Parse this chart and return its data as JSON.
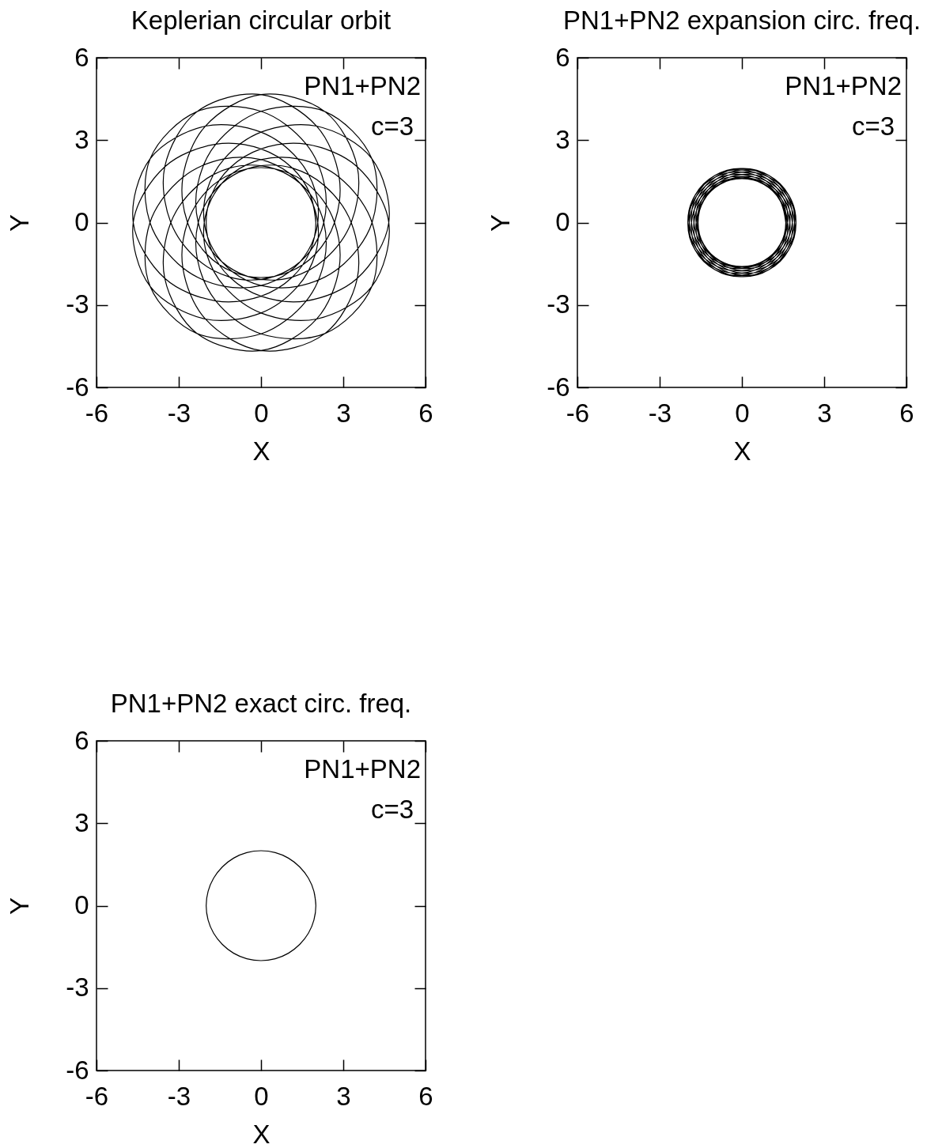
{
  "chart_data": [
    {
      "type": "line",
      "title": "Keplerian circular orbit",
      "xlabel": "X",
      "ylabel": "Y",
      "xlim": [
        -6,
        6
      ],
      "ylim": [
        -6,
        6
      ],
      "xticks": [
        -6,
        -3,
        0,
        3,
        6
      ],
      "yticks": [
        -6,
        -3,
        0,
        3,
        6
      ],
      "annotations": [
        "PN1+PN2",
        "c=3"
      ],
      "series": [
        {
          "color": "#000000",
          "x": [
            2,
            1.79,
            1.15,
            0,
            -1.65,
            -3.51,
            -4.66,
            -4.04,
            -2.03,
            0,
            1.34,
            1.98,
            2.07,
            1.73,
            1.04,
            0,
            -1.34,
            -2.85,
            -4.05,
            -4.04,
            -2.33,
            0,
            1.65,
            2.32,
            2.29,
            1.79,
            1,
            0,
            -1.15,
            -2.32,
            -3.29,
            -3.51,
            -2.33,
            0,
            2.03,
            2.85,
            2.68,
            1.98,
            1.04,
            0,
            -1.04,
            -1.98,
            -2.68,
            -2.85,
            -2.03,
            0,
            2.33,
            3.51,
            3.29,
            2.32,
            1.15,
            0,
            -1,
            -1.79,
            -2.29,
            -2.32,
            -1.65,
            0,
            2.33,
            4.04,
            4.05,
            2.85,
            1.34,
            0,
            -1.04,
            -1.73,
            -2.07,
            -1.98,
            -1.34,
            0,
            2.03,
            4.04,
            4.66,
            3.51,
            1.65,
            0,
            -1.15,
            -1.79,
            -2,
            -1.79,
            -1.15,
            0,
            1.65,
            3.51,
            4.66,
            4.04,
            2.03,
            0,
            -1.34,
            -1.98,
            -2.07,
            -1.73,
            -1.04,
            0,
            1.34,
            2.85,
            4.05,
            4.04,
            2.33,
            0,
            -1.65,
            -2.32,
            -2.29,
            -1.79,
            -1,
            0,
            1.15,
            2.32,
            3.29,
            3.51,
            2.33,
            0,
            -2.03,
            -2.85,
            -2.68,
            -1.98,
            -1.04,
            0,
            1.04,
            1.98,
            2.68,
            2.85,
            2.03,
            0,
            -2.33,
            -3.51,
            -3.29,
            -2.32,
            -1.15,
            0,
            1,
            1.79,
            2.29,
            2.32,
            1.65,
            0,
            -2.33,
            -4.04,
            -4.05,
            -2.85,
            -1.34,
            0,
            1.04,
            1.73,
            2.07,
            1.98,
            1.34,
            0,
            -2.03,
            -4.04,
            -4.66,
            -3.51,
            -1.65,
            0,
            1.15,
            1.79,
            2,
            1.79
          ],
          "values": [
            0,
            1.04,
            1.98,
            2.68,
            2.85,
            2.03,
            0,
            -2.33,
            -3.51,
            -3.29,
            -2.32,
            -1.15,
            0,
            1,
            1.79,
            2.29,
            2.32,
            1.65,
            0,
            -2.33,
            -4.04,
            -4.05,
            -2.85,
            -1.34,
            0,
            1.04,
            1.73,
            2.07,
            1.98,
            1.34,
            0,
            -2.03,
            -4.04,
            -4.66,
            -3.51,
            -1.65,
            0,
            1.15,
            1.79,
            2,
            1.79,
            1.15,
            0,
            -1.65,
            -3.51,
            -4.66,
            -4.04,
            -2.03,
            0,
            1.34,
            1.98,
            2.07,
            1.73,
            1.04,
            0,
            -1.34,
            -2.85,
            -4.05,
            -4.04,
            -2.33,
            0,
            1.65,
            2.32,
            2.29,
            1.79,
            1,
            0,
            -1.15,
            -2.32,
            -3.29,
            -3.51,
            -2.33,
            0,
            2.03,
            2.85,
            2.68,
            1.98,
            1.04,
            0,
            -1.04,
            -1.98,
            -2.68,
            -2.85,
            -2.03,
            0,
            2.33,
            3.51,
            3.29,
            2.32,
            1.15,
            0,
            -1,
            -1.79,
            -2.29,
            -2.32,
            -1.65,
            0,
            2.33,
            4.04,
            4.05,
            2.85,
            1.34,
            0,
            -1.04,
            -1.73,
            -2.07,
            -1.98,
            -1.34,
            0,
            2.03,
            4.04,
            4.66,
            3.51,
            1.65,
            0,
            -1.15,
            -1.79,
            -2,
            -1.79,
            -1.15,
            0,
            1.65,
            3.51,
            4.66,
            4.04,
            2.03,
            0,
            -1.34,
            -1.98,
            -2.07,
            -1.73,
            -1.04,
            0,
            1.34,
            2.85,
            4.05,
            4.04,
            2.33,
            0,
            -1.65,
            -2.32,
            -2.29,
            -1.79,
            -1,
            0,
            1.15,
            2.32,
            3.29,
            3.51,
            2.33,
            0,
            -2.03,
            -2.85,
            -2.68,
            -1.98,
            -1.04,
            0,
            1.04
          ]
        }
      ]
    },
    {
      "type": "line",
      "title": "PN1+PN2 expansion circ. freq.",
      "xlabel": "X",
      "ylabel": "Y",
      "xlim": [
        -6,
        6
      ],
      "ylim": [
        -6,
        6
      ],
      "xticks": [
        -6,
        -3,
        0,
        3,
        6
      ],
      "yticks": [
        -6,
        -3,
        0,
        3,
        6
      ],
      "annotations": [
        "PN1+PN2",
        "c=3"
      ],
      "series": [
        {
          "color": "#000000",
          "x": [
            1.6,
            1.4,
            0.84,
            0,
            -0.92,
            -1.66,
            -1.97,
            -1.71,
            -0.96,
            0,
            0.88,
            1.45,
            1.62,
            1.39,
            0.81,
            0,
            -0.88,
            -1.59,
            -1.92,
            -1.71,
            -0.99,
            0,
            0.92,
            1.52,
            1.67,
            1.4,
            0.8,
            0,
            -0.84,
            -1.52,
            -1.84,
            -1.66,
            -0.99,
            0,
            0.96,
            1.59,
            1.75,
            1.45,
            0.81,
            0,
            -0.81,
            -1.45,
            -1.75,
            -1.59,
            -0.96,
            0,
            0.99,
            1.66,
            1.84,
            1.52,
            0.84,
            0,
            -0.8,
            -1.4,
            -1.67,
            -1.52,
            -0.92,
            0,
            0.99,
            1.71,
            1.92,
            1.59,
            0.88,
            0,
            -0.81,
            -1.39,
            -1.62,
            -1.45,
            -0.88,
            0,
            0.96,
            1.71,
            1.97,
            1.66,
            0.92,
            0,
            -0.84,
            -1.4,
            -1.6,
            -1.4,
            -0.84,
            0,
            0.92,
            1.66,
            1.97,
            1.71,
            0.96,
            0,
            -0.88,
            -1.45,
            -1.62,
            -1.39,
            -0.81,
            0,
            0.88,
            1.59,
            1.92,
            1.71,
            0.99,
            0,
            -0.92,
            -1.52,
            -1.67,
            -1.4,
            -0.8,
            0,
            0.84,
            1.52,
            1.84,
            1.66,
            0.99,
            0,
            -0.96,
            -1.59,
            -1.75,
            -1.45,
            -0.81,
            0,
            0.81,
            1.45,
            1.75,
            1.59,
            0.96,
            0,
            -0.99,
            -1.66,
            -1.84,
            -1.52,
            -0.84,
            0,
            0.8,
            1.4,
            1.67,
            1.52,
            0.92,
            0,
            -0.99,
            -1.71,
            -1.92,
            -1.59,
            -0.88,
            0,
            0.81,
            1.39,
            1.62,
            1.45,
            0.88,
            0,
            -0.96,
            -1.71,
            -1.97,
            -1.66,
            -0.92,
            0,
            0.84,
            1.4,
            1.6,
            1.4
          ],
          "values": [
            0,
            0.81,
            1.45,
            1.75,
            1.59,
            0.96,
            0,
            -0.99,
            -1.66,
            -1.84,
            -1.52,
            -0.84,
            0,
            0.8,
            1.4,
            1.67,
            1.52,
            0.92,
            0,
            -0.99,
            -1.71,
            -1.92,
            -1.59,
            -0.88,
            0,
            0.81,
            1.39,
            1.62,
            1.45,
            0.88,
            0,
            -0.96,
            -1.71,
            -1.97,
            -1.66,
            -0.92,
            0,
            0.84,
            1.4,
            1.6,
            1.4,
            0.84,
            0,
            -0.92,
            -1.66,
            -1.97,
            -1.71,
            -0.96,
            0,
            0.88,
            1.45,
            1.62,
            1.39,
            0.81,
            0,
            -0.88,
            -1.59,
            -1.92,
            -1.71,
            -0.99,
            0,
            0.92,
            1.52,
            1.67,
            1.4,
            0.8,
            0,
            -0.84,
            -1.52,
            -1.84,
            -1.66,
            -0.99,
            0,
            0.96,
            1.59,
            1.75,
            1.45,
            0.81,
            0,
            -0.81,
            -1.45,
            -1.75,
            -1.59,
            -0.96,
            0,
            0.99,
            1.66,
            1.84,
            1.52,
            0.84,
            0,
            -0.8,
            -1.4,
            -1.67,
            -1.52,
            -0.92,
            0,
            0.99,
            1.71,
            1.92,
            1.59,
            0.88,
            0,
            -0.81,
            -1.39,
            -1.62,
            -1.45,
            -0.88,
            0,
            0.96,
            1.71,
            1.97,
            1.66,
            0.92,
            0,
            -0.84,
            -1.4,
            -1.6,
            -1.4,
            -0.84,
            0,
            0.92,
            1.66,
            1.97,
            1.71,
            0.96,
            0,
            -0.88,
            -1.45,
            -1.62,
            -1.39,
            -0.81,
            0,
            0.88,
            1.59,
            1.92,
            1.71,
            0.99,
            0,
            -0.92,
            -1.52,
            -1.67,
            -1.4,
            -0.8,
            0,
            0.84,
            1.52,
            1.84,
            1.66,
            0.99,
            0,
            -0.96,
            -1.59,
            -1.75,
            -1.45,
            -0.81,
            0,
            0.81
          ]
        }
      ]
    },
    {
      "type": "line",
      "title": "PN1+PN2 exact circ. freq.",
      "xlabel": "X",
      "ylabel": "Y",
      "xlim": [
        -6,
        6
      ],
      "ylim": [
        -6,
        6
      ],
      "xticks": [
        -6,
        -3,
        0,
        3,
        6
      ],
      "yticks": [
        -6,
        -3,
        0,
        3,
        6
      ],
      "annotations": [
        "PN1+PN2",
        "c=3"
      ],
      "series": [
        {
          "color": "#000000",
          "x": [
            2,
            1.93,
            1.73,
            1.41,
            1,
            0.52,
            0,
            -0.52,
            -1,
            -1.41,
            -1.73,
            -1.93,
            -2,
            -1.93,
            -1.73,
            -1.41,
            -1,
            -0.52,
            0,
            0.52,
            1,
            1.41,
            1.73,
            1.93,
            2,
            1.93
          ],
          "values": [
            0,
            0.52,
            1,
            1.41,
            1.73,
            1.93,
            2,
            1.93,
            1.73,
            1.41,
            1,
            0.52,
            0,
            -0.52,
            -1,
            -1.41,
            -1.73,
            -1.93,
            -2,
            -1.93,
            -1.73,
            -1.41,
            -1,
            -0.52,
            0,
            0.52
          ]
        }
      ]
    }
  ]
}
